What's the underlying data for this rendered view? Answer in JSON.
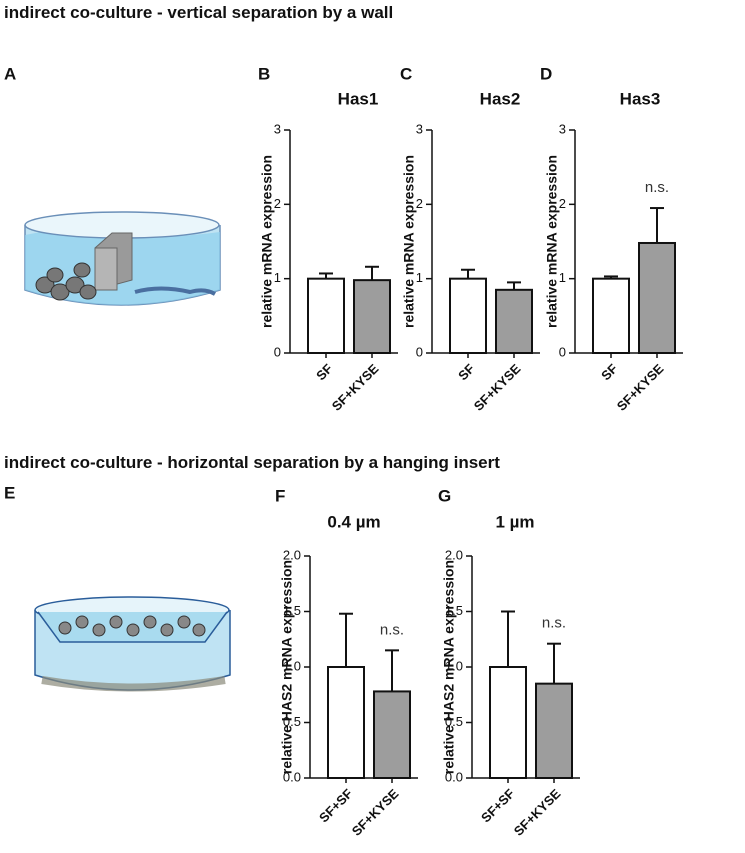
{
  "headings": [
    "indirect co-culture - vertical separation by a wall",
    "indirect co-culture - horizontal separation by a hanging insert"
  ],
  "illustration_labels": [
    "A",
    "E"
  ],
  "chart_data": [
    {
      "type": "bar",
      "panel": "B",
      "title": "Has1",
      "ylabel": "relative mRNA expression",
      "categories": [
        "SF",
        "SF+KYSE"
      ],
      "values": [
        1.0,
        0.98
      ],
      "errors": [
        0.07,
        0.18
      ],
      "colors": [
        "#ffffff",
        "#9d9d9d"
      ],
      "ylim": [
        0,
        3
      ],
      "yticks": [
        0,
        1,
        2,
        3
      ]
    },
    {
      "type": "bar",
      "panel": "C",
      "title": "Has2",
      "ylabel": "relative mRNA expression",
      "categories": [
        "SF",
        "SF+KYSE"
      ],
      "values": [
        1.0,
        0.85
      ],
      "errors": [
        0.12,
        0.1
      ],
      "colors": [
        "#ffffff",
        "#9d9d9d"
      ],
      "ylim": [
        0,
        3
      ],
      "yticks": [
        0,
        1,
        2,
        3
      ]
    },
    {
      "type": "bar",
      "panel": "D",
      "title": "Has3",
      "ylabel": "relative mRNA expression",
      "categories": [
        "SF",
        "SF+KYSE"
      ],
      "values": [
        1.0,
        1.48
      ],
      "errors": [
        0.03,
        0.47
      ],
      "annotation": "n.s.",
      "colors": [
        "#ffffff",
        "#9d9d9d"
      ],
      "ylim": [
        0,
        3
      ],
      "yticks": [
        0,
        1,
        2,
        3
      ]
    },
    {
      "type": "bar",
      "panel": "F",
      "title": "0.4 µm",
      "ylabel": "relative HAS2 mRNA expression",
      "categories": [
        "SF+SF",
        "SF+KYSE"
      ],
      "values": [
        1.0,
        0.78
      ],
      "errors": [
        0.48,
        0.37
      ],
      "annotation": "n.s.",
      "colors": [
        "#ffffff",
        "#9d9d9d"
      ],
      "ylim": [
        0,
        2
      ],
      "yticks": [
        {
          "value": 0,
          "label": "0.0"
        },
        0.5,
        {
          "value": 1,
          "label": "1.0"
        },
        1.5,
        {
          "value": 2,
          "label": "2.0"
        }
      ]
    },
    {
      "type": "bar",
      "panel": "G",
      "title": "1 µm",
      "ylabel": "relative HAS2 mRNA expression",
      "categories": [
        "SF+SF",
        "SF+KYSE"
      ],
      "values": [
        1.0,
        0.85
      ],
      "errors": [
        0.5,
        0.36
      ],
      "annotation": "n.s.",
      "colors": [
        "#ffffff",
        "#9d9d9d"
      ],
      "ylim": [
        0,
        2
      ],
      "yticks": [
        {
          "value": 0,
          "label": "0.0"
        },
        0.5,
        {
          "value": 1,
          "label": "1.0"
        },
        1.5,
        {
          "value": 2,
          "label": "2.0"
        }
      ]
    }
  ]
}
